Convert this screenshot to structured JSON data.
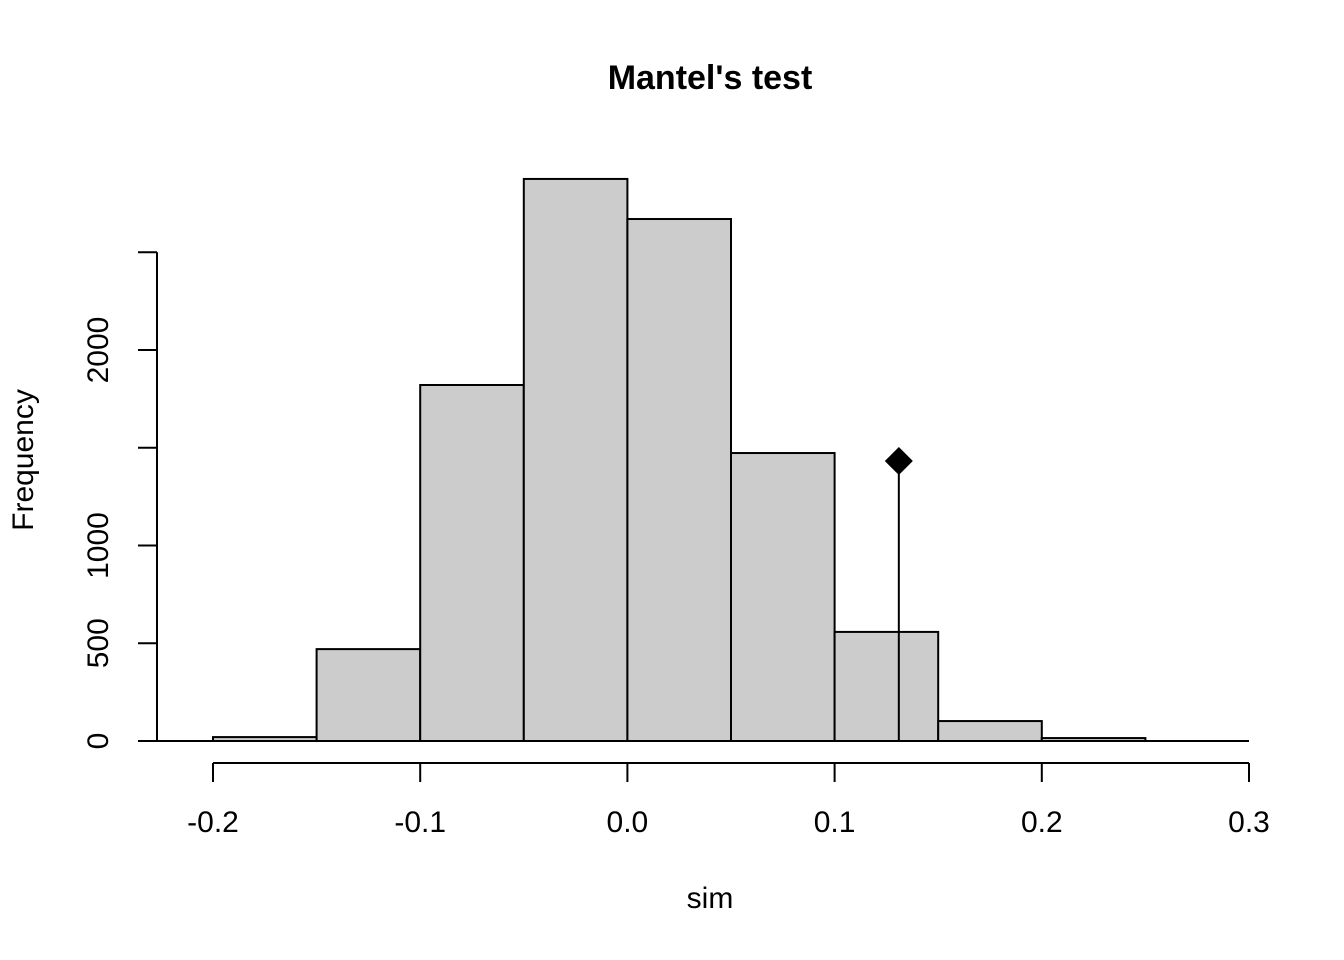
{
  "chart_data": {
    "type": "histogram",
    "title": "Mantel's test",
    "x_label": "sim",
    "y_label": "Frequency",
    "bins": [
      -0.2,
      -0.15,
      -0.1,
      -0.05,
      0,
      0.05,
      0.1,
      0.15,
      0.2,
      0.25,
      0.3
    ],
    "values": [
      20,
      470,
      1821,
      2875,
      2670,
      1473,
      558,
      102,
      15,
      0
    ],
    "color": "#cccccc",
    "observation": {
      "x": 0.131,
      "height": 1432
    },
    "xlim": [
      -0.2,
      0.3
    ],
    "xticks": [
      -0.2,
      -0.1,
      {
        "value": 0,
        "label": "0.0"
      },
      0.1,
      0.2,
      0.3
    ],
    "ylim": [
      0,
      3000
    ],
    "yticks": [
      0,
      500,
      1000,
      {
        "value": 1500,
        "label": null
      },
      2000,
      {
        "value": 2500,
        "label": null
      }
    ]
  }
}
